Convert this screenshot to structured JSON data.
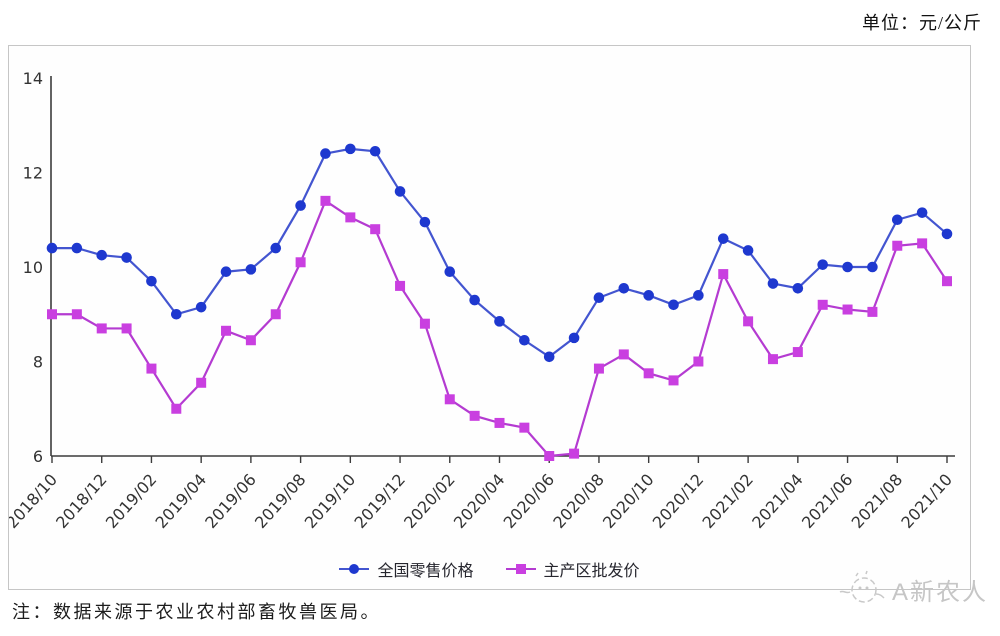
{
  "header": {
    "unit_label": "单位：元/公斤"
  },
  "chart_data": {
    "type": "line",
    "title": "",
    "x": [
      "2018/10",
      "2018/11",
      "2018/12",
      "2019/01",
      "2019/02",
      "2019/03",
      "2019/04",
      "2019/05",
      "2019/06",
      "2019/07",
      "2019/08",
      "2019/09",
      "2019/10",
      "2019/11",
      "2019/12",
      "2020/01",
      "2020/02",
      "2020/03",
      "2020/04",
      "2020/05",
      "2020/06",
      "2020/07",
      "2020/08",
      "2020/09",
      "2020/10",
      "2020/11",
      "2020/12",
      "2021/01",
      "2021/02",
      "2021/03",
      "2021/04",
      "2021/05",
      "2021/06",
      "2021/07",
      "2021/08",
      "2021/09",
      "2021/10"
    ],
    "x_tick_labels": [
      "2018/10",
      "2018/12",
      "2019/02",
      "2019/04",
      "2019/06",
      "2019/08",
      "2019/10",
      "2019/12",
      "2020/02",
      "2020/04",
      "2020/06",
      "2020/08",
      "2020/10",
      "2020/12",
      "2021/02",
      "2021/04",
      "2021/06",
      "2021/08",
      "2021/10"
    ],
    "series": [
      {
        "name": "全国零售价格",
        "marker": "circle",
        "marker_color": "#1e38cf",
        "line_color": "#4355d0",
        "values": [
          10.4,
          10.4,
          10.25,
          10.2,
          9.7,
          9.0,
          9.15,
          9.9,
          9.95,
          10.4,
          11.3,
          12.4,
          12.5,
          12.45,
          11.6,
          10.95,
          9.9,
          9.3,
          8.85,
          8.45,
          8.1,
          8.5,
          9.35,
          9.55,
          9.4,
          9.2,
          9.4,
          10.6,
          10.35,
          9.65,
          9.55,
          10.05,
          10.0,
          10.0,
          11.0,
          11.15,
          10.7
        ]
      },
      {
        "name": "主产区批发价",
        "marker": "square",
        "marker_color": "#c93fe0",
        "line_color": "#b43bd1",
        "values": [
          9.0,
          9.0,
          8.7,
          8.7,
          7.85,
          7.0,
          7.55,
          8.65,
          8.45,
          9.0,
          10.1,
          11.4,
          11.05,
          10.8,
          9.6,
          8.8,
          7.2,
          6.85,
          6.7,
          6.6,
          6.0,
          6.05,
          7.85,
          8.15,
          7.75,
          7.6,
          8.0,
          9.85,
          8.85,
          8.05,
          8.2,
          9.2,
          9.1,
          9.05,
          10.45,
          10.5,
          9.7
        ]
      }
    ],
    "ylim": [
      6,
      14
    ],
    "yticks": [
      6,
      8,
      10,
      12,
      14
    ],
    "xlabel": "",
    "ylabel": "",
    "grid": false,
    "legend_position": "bottom-center",
    "axis_color": "#3c3c3c",
    "tick_label_color": "#333333"
  },
  "footer": {
    "note": "注：数据来源于农业农村部畜牧兽医局。"
  },
  "watermark": {
    "text": "A新农人"
  }
}
